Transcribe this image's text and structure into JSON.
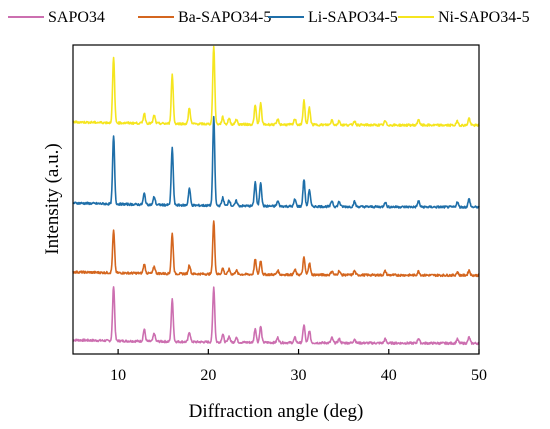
{
  "chart_data": {
    "type": "line",
    "xlabel": "Diffraction angle (deg)",
    "ylabel": "Intensity (a.u.)",
    "xlim": [
      5,
      50
    ],
    "xticks": [
      10,
      20,
      30,
      40,
      50
    ],
    "y_tick_labels_shown": false,
    "grid": false,
    "legend_position": "top",
    "series": [
      {
        "name": "SAPO34",
        "color": "#cc6fb0",
        "offset": 0,
        "baseline": 8,
        "peaks": [
          [
            9.5,
            55
          ],
          [
            12.9,
            12
          ],
          [
            14.0,
            8
          ],
          [
            16.0,
            42
          ],
          [
            17.9,
            10
          ],
          [
            20.6,
            55
          ],
          [
            21.6,
            8
          ],
          [
            22.3,
            6
          ],
          [
            23.1,
            5
          ],
          [
            25.2,
            14
          ],
          [
            25.8,
            16
          ],
          [
            27.7,
            5
          ],
          [
            29.6,
            5
          ],
          [
            30.6,
            18
          ],
          [
            31.2,
            12
          ],
          [
            33.7,
            5
          ],
          [
            34.5,
            4
          ],
          [
            36.2,
            4
          ],
          [
            39.6,
            4
          ],
          [
            43.3,
            5
          ],
          [
            47.6,
            4
          ],
          [
            48.9,
            6
          ]
        ]
      },
      {
        "name": "Ba-SAPO34-5",
        "color": "#d4661f",
        "offset": 68,
        "baseline": 8,
        "peaks": [
          [
            9.5,
            42
          ],
          [
            12.9,
            9
          ],
          [
            14.0,
            7
          ],
          [
            16.0,
            40
          ],
          [
            17.9,
            9
          ],
          [
            20.6,
            53
          ],
          [
            21.6,
            6
          ],
          [
            22.3,
            5
          ],
          [
            23.1,
            4
          ],
          [
            25.2,
            15
          ],
          [
            25.8,
            14
          ],
          [
            27.7,
            4
          ],
          [
            29.6,
            5
          ],
          [
            30.6,
            17
          ],
          [
            31.2,
            12
          ],
          [
            33.7,
            4
          ],
          [
            34.5,
            4
          ],
          [
            36.2,
            4
          ],
          [
            39.6,
            4
          ],
          [
            43.3,
            4
          ],
          [
            47.6,
            3
          ],
          [
            48.9,
            5
          ]
        ]
      },
      {
        "name": "Li-SAPO34-5",
        "color": "#1f6fa9",
        "offset": 135,
        "baseline": 10,
        "peaks": [
          [
            9.5,
            68
          ],
          [
            12.9,
            11
          ],
          [
            14.0,
            8
          ],
          [
            16.0,
            57
          ],
          [
            17.9,
            17
          ],
          [
            20.6,
            88
          ],
          [
            21.6,
            8
          ],
          [
            22.3,
            6
          ],
          [
            23.1,
            5
          ],
          [
            25.2,
            24
          ],
          [
            25.8,
            24
          ],
          [
            27.7,
            5
          ],
          [
            29.6,
            7
          ],
          [
            30.6,
            27
          ],
          [
            31.2,
            17
          ],
          [
            33.7,
            6
          ],
          [
            34.5,
            5
          ],
          [
            36.2,
            5
          ],
          [
            39.6,
            5
          ],
          [
            43.3,
            6
          ],
          [
            47.6,
            5
          ],
          [
            48.9,
            8
          ]
        ]
      },
      {
        "name": "Ni-SAPO34-5",
        "color": "#f5e51f",
        "offset": 218,
        "baseline": 8,
        "peaks": [
          [
            9.5,
            65
          ],
          [
            12.9,
            10
          ],
          [
            14.0,
            8
          ],
          [
            16.0,
            49
          ],
          [
            17.9,
            16
          ],
          [
            20.6,
            78
          ],
          [
            21.6,
            7
          ],
          [
            22.3,
            6
          ],
          [
            23.1,
            5
          ],
          [
            25.2,
            19
          ],
          [
            25.8,
            21
          ],
          [
            27.7,
            5
          ],
          [
            29.6,
            6
          ],
          [
            30.6,
            24
          ],
          [
            31.2,
            17
          ],
          [
            33.7,
            5
          ],
          [
            34.5,
            4
          ],
          [
            36.2,
            4
          ],
          [
            39.6,
            4
          ],
          [
            43.3,
            6
          ],
          [
            47.6,
            4
          ],
          [
            48.9,
            7
          ]
        ]
      }
    ]
  }
}
